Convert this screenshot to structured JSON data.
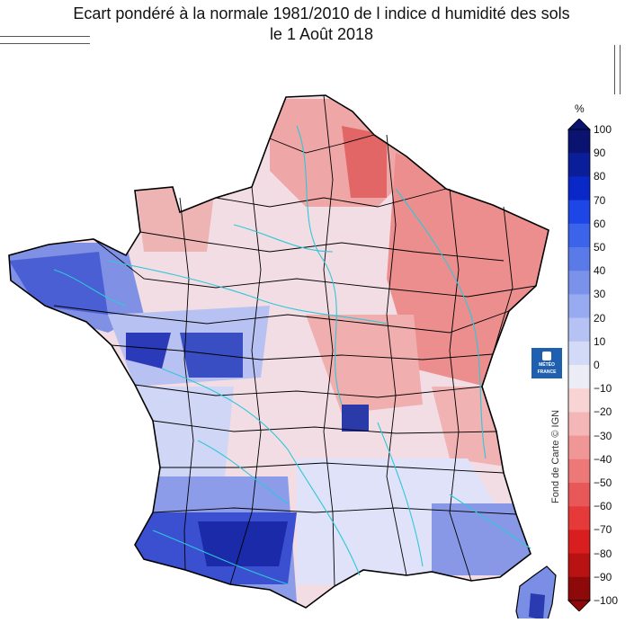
{
  "title": {
    "line1": "Ecart pondéré à la normale 1981/2010 de l indice d humidité des sols",
    "line2": "le 1 Août 2018"
  },
  "colorbar": {
    "unit": "%",
    "ticks": [
      "100",
      "90",
      "80",
      "70",
      "60",
      "50",
      "40",
      "30",
      "20",
      "10",
      "0",
      "−10",
      "−20",
      "−30",
      "−40",
      "−50",
      "−60",
      "−70",
      "−80",
      "−90",
      "−100"
    ],
    "colors": [
      "#0a1470",
      "#0a1e9a",
      "#0a28c8",
      "#1e46e6",
      "#3c64ea",
      "#5a7ae8",
      "#7a92ea",
      "#98aaf0",
      "#b6c2f4",
      "#d2daf8",
      "#ececf6",
      "#f8d4d4",
      "#f4b6b6",
      "#f09696",
      "#ec7878",
      "#e85858",
      "#e63a3a",
      "#d81e1e",
      "#b81212",
      "#8e0a0a"
    ]
  },
  "logo": {
    "text1": "MÉTÉO",
    "text2": "FRANCE"
  },
  "credit": "Fond de Carte © IGN",
  "map_regions": [
    {
      "name": "nord",
      "color": "#ee9a9a"
    },
    {
      "name": "normandie",
      "color": "#eeb0b0"
    },
    {
      "name": "bretagne",
      "color": "#5a6fd8"
    },
    {
      "name": "centre",
      "color": "#f2d0d6"
    },
    {
      "name": "est",
      "color": "#ec8888"
    },
    {
      "name": "sud-ouest",
      "color": "#3a4fd0"
    },
    {
      "name": "sud-est",
      "color": "#d8dcf6"
    },
    {
      "name": "corse",
      "color": "#6a7ee0"
    }
  ]
}
